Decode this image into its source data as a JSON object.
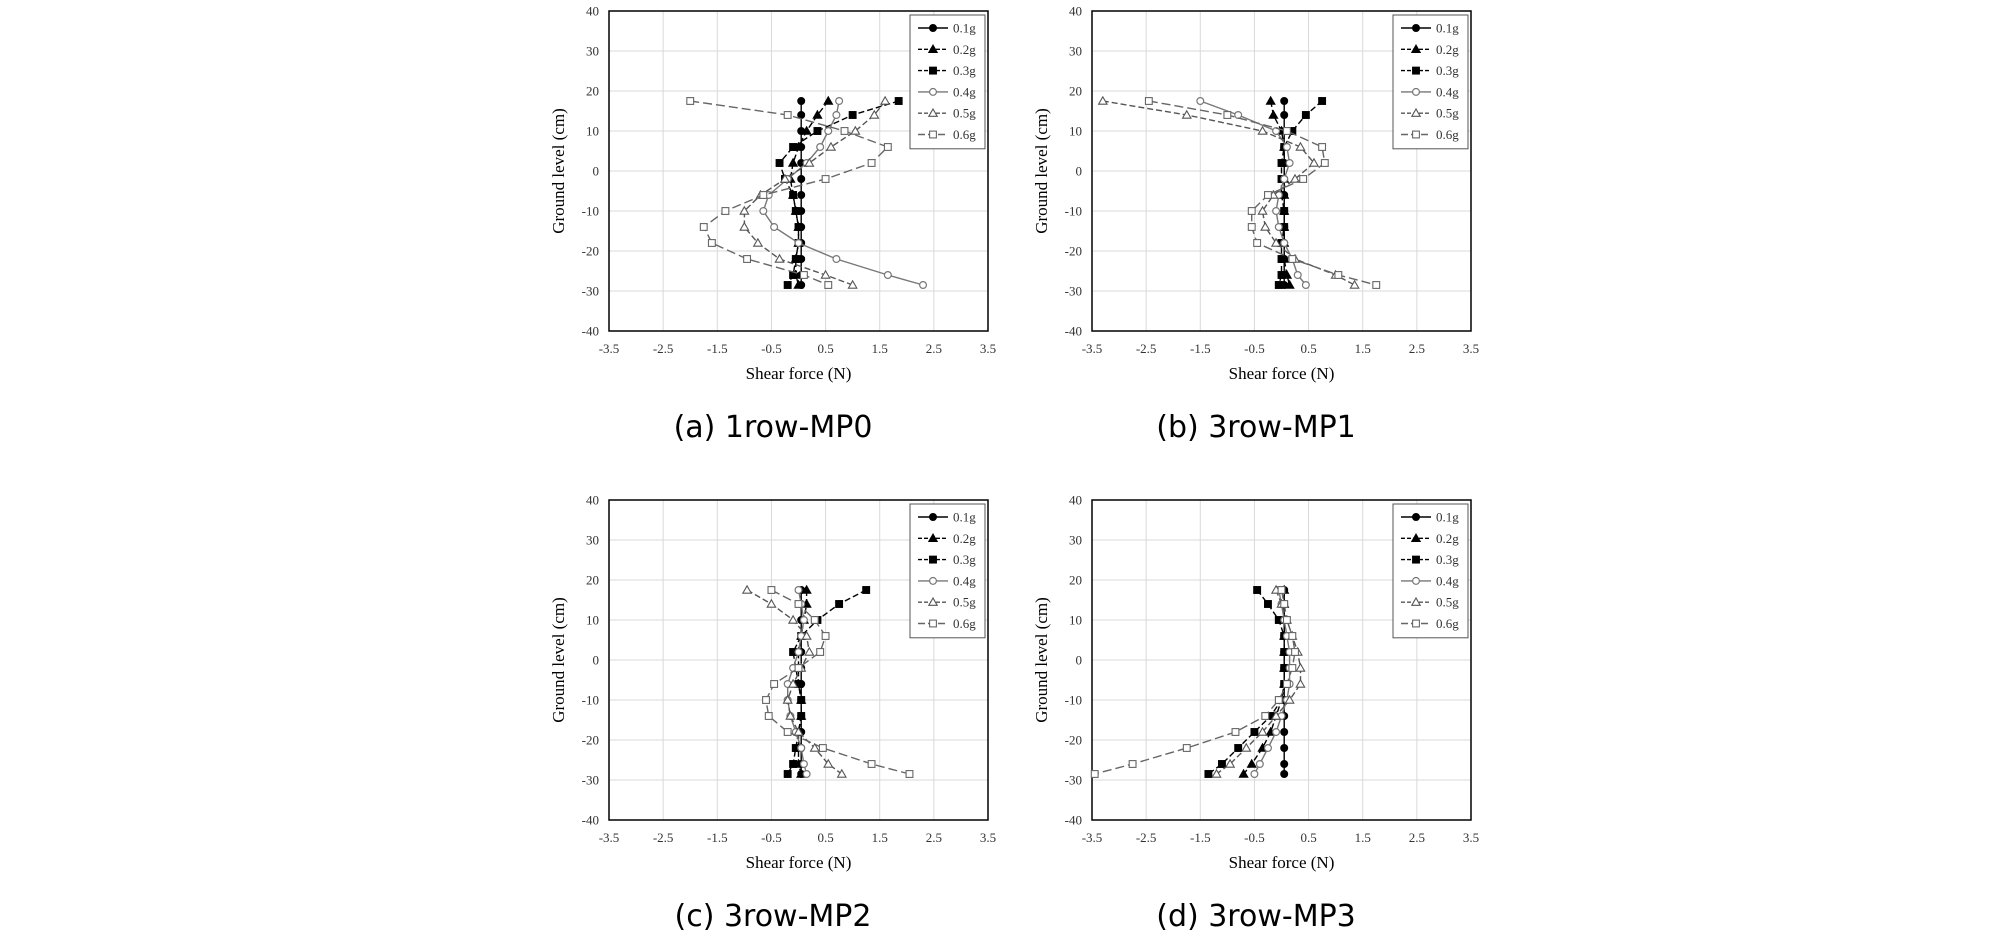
{
  "chart_data": [
    {
      "type": "line",
      "caption": "(a) 1row-MP0",
      "xlabel": "Shear force (N)",
      "ylabel": "Ground level (cm)",
      "xlim": [
        -3.5,
        3.5
      ],
      "ylim": [
        -40,
        40
      ],
      "xticks": [
        "-3.5",
        "-2.5",
        "-1.5",
        "-0.5",
        "0.5",
        "1.5",
        "2.5",
        "3.5"
      ],
      "yticks": [
        "40",
        "30",
        "20",
        "10",
        "0",
        "-10",
        "-20",
        "-30",
        "-40"
      ],
      "grid": true,
      "legend": "top-right",
      "series": [
        {
          "name": "0.1g",
          "marker": "circle-filled",
          "dash": "solid",
          "color": "#000000",
          "x": [
            0.05,
            0.05,
            0.05,
            0.05,
            0.05,
            0.05,
            0.05,
            0.05,
            0.05,
            0.05,
            0.05,
            0.05,
            0.05
          ],
          "y": [
            17.5,
            14,
            10,
            6,
            2,
            -2,
            -6,
            -10,
            -14,
            -18,
            -22,
            -26,
            -28.5
          ]
        },
        {
          "name": "0.2g",
          "marker": "triangle-filled",
          "dash": "dashed",
          "color": "#000000",
          "x": [
            0.55,
            0.35,
            0.15,
            0.0,
            -0.1,
            -0.15,
            -0.1,
            -0.05,
            0.0,
            0.0,
            -0.05,
            -0.05,
            0.0
          ],
          "y": [
            17.5,
            14,
            10,
            6,
            2,
            -2,
            -6,
            -10,
            -14,
            -18,
            -22,
            -26,
            -28.5
          ]
        },
        {
          "name": "0.3g",
          "marker": "square-filled",
          "dash": "dashed",
          "color": "#000000",
          "x": [
            1.85,
            1.0,
            0.35,
            -0.1,
            -0.35,
            -0.25,
            -0.1,
            -0.05,
            0.0,
            0.0,
            -0.05,
            -0.1,
            -0.2
          ],
          "y": [
            17.5,
            14,
            10,
            6,
            2,
            -2,
            -6,
            -10,
            -14,
            -18,
            -22,
            -26,
            -28.5
          ]
        },
        {
          "name": "0.4g",
          "marker": "circle-open",
          "dash": "solid",
          "color": "#777777",
          "x": [
            0.75,
            0.7,
            0.55,
            0.4,
            0.15,
            -0.2,
            -0.55,
            -0.65,
            -0.45,
            0.0,
            0.7,
            1.65,
            2.3
          ],
          "y": [
            17.5,
            14,
            10,
            6,
            2,
            -2,
            -6,
            -10,
            -14,
            -18,
            -22,
            -26,
            -28.5
          ]
        },
        {
          "name": "0.5g",
          "marker": "triangle-open",
          "dash": "dashed",
          "color": "#555555",
          "x": [
            1.6,
            1.4,
            1.05,
            0.6,
            0.2,
            -0.25,
            -0.7,
            -1.0,
            -1.0,
            -0.75,
            -0.35,
            0.5,
            1.0
          ],
          "y": [
            17.5,
            14,
            10,
            6,
            2,
            -2,
            -6,
            -10,
            -14,
            -18,
            -22,
            -26,
            -28.5
          ]
        },
        {
          "name": "0.6g",
          "marker": "square-open",
          "dash": "longdash",
          "color": "#666666",
          "x": [
            -2.0,
            -0.2,
            0.85,
            1.65,
            1.35,
            0.5,
            -0.65,
            -1.35,
            -1.75,
            -1.6,
            -0.95,
            0.1,
            0.55
          ],
          "y": [
            17.5,
            14,
            10,
            6,
            2,
            -2,
            -6,
            -10,
            -14,
            -18,
            -22,
            -26,
            -28.5
          ]
        }
      ]
    },
    {
      "type": "line",
      "caption": "(b) 3row-MP1",
      "xlabel": "Shear force (N)",
      "ylabel": "Ground level (cm)",
      "xlim": [
        -3.5,
        3.5
      ],
      "ylim": [
        -40,
        40
      ],
      "xticks": [
        "-3.5",
        "-2.5",
        "-1.5",
        "-0.5",
        "0.5",
        "1.5",
        "2.5",
        "3.5"
      ],
      "yticks": [
        "40",
        "30",
        "20",
        "10",
        "0",
        "-10",
        "-20",
        "-30",
        "-40"
      ],
      "grid": true,
      "legend": "top-right",
      "series": [
        {
          "name": "0.1g",
          "marker": "circle-filled",
          "dash": "solid",
          "color": "#000000",
          "x": [
            0.05,
            0.05,
            0.05,
            0.05,
            0.05,
            0.05,
            0.05,
            0.05,
            0.05,
            0.05,
            0.05,
            0.05,
            0.05
          ],
          "y": [
            17.5,
            14,
            10,
            6,
            2,
            -2,
            -6,
            -10,
            -14,
            -18,
            -22,
            -26,
            -28.5
          ]
        },
        {
          "name": "0.2g",
          "marker": "triangle-filled",
          "dash": "dashed",
          "color": "#000000",
          "x": [
            -0.2,
            -0.15,
            0.0,
            0.05,
            0.05,
            0.05,
            0.05,
            0.05,
            0.05,
            0.05,
            0.05,
            0.1,
            0.15
          ],
          "y": [
            17.5,
            14,
            10,
            6,
            2,
            -2,
            -6,
            -10,
            -14,
            -18,
            -22,
            -26,
            -28.5
          ]
        },
        {
          "name": "0.3g",
          "marker": "square-filled",
          "dash": "dashed",
          "color": "#000000",
          "x": [
            0.75,
            0.45,
            0.2,
            0.05,
            0.0,
            0.0,
            0.0,
            0.05,
            0.05,
            0.0,
            0.0,
            0.0,
            -0.05
          ],
          "y": [
            17.5,
            14,
            10,
            6,
            2,
            -2,
            -6,
            -10,
            -14,
            -18,
            -22,
            -26,
            -28.5
          ]
        },
        {
          "name": "0.4g",
          "marker": "circle-open",
          "dash": "solid",
          "color": "#777777",
          "x": [
            -1.5,
            -0.8,
            -0.1,
            0.1,
            0.15,
            0.05,
            -0.05,
            -0.1,
            -0.05,
            0.05,
            0.2,
            0.3,
            0.45
          ],
          "y": [
            17.5,
            14,
            10,
            6,
            2,
            -2,
            -6,
            -10,
            -14,
            -18,
            -22,
            -26,
            -28.5
          ]
        },
        {
          "name": "0.5g",
          "marker": "triangle-open",
          "dash": "dashed",
          "color": "#555555",
          "x": [
            -3.3,
            -1.75,
            -0.35,
            0.35,
            0.6,
            0.25,
            -0.15,
            -0.35,
            -0.3,
            -0.1,
            0.25,
            1.0,
            1.35
          ],
          "y": [
            17.5,
            14,
            10,
            6,
            2,
            -2,
            -6,
            -10,
            -14,
            -18,
            -22,
            -26,
            -28.5
          ]
        },
        {
          "name": "0.6g",
          "marker": "square-open",
          "dash": "longdash",
          "color": "#666666",
          "x": [
            -2.45,
            -1.0,
            0.1,
            0.75,
            0.8,
            0.4,
            -0.25,
            -0.55,
            -0.55,
            -0.45,
            0.2,
            1.05,
            1.75
          ],
          "y": [
            17.5,
            14,
            10,
            6,
            2,
            -2,
            -6,
            -10,
            -14,
            -18,
            -22,
            -26,
            -28.5
          ]
        }
      ]
    },
    {
      "type": "line",
      "caption": "(c) 3row-MP2",
      "xlabel": "Shear force (N)",
      "ylabel": "Ground level (cm)",
      "xlim": [
        -3.5,
        3.5
      ],
      "ylim": [
        -40,
        40
      ],
      "xticks": [
        "-3.5",
        "-2.5",
        "-1.5",
        "-0.5",
        "0.5",
        "1.5",
        "2.5",
        "3.5"
      ],
      "yticks": [
        "40",
        "30",
        "20",
        "10",
        "0",
        "-10",
        "-20",
        "-30",
        "-40"
      ],
      "grid": true,
      "legend": "top-right",
      "series": [
        {
          "name": "0.1g",
          "marker": "circle-filled",
          "dash": "solid",
          "color": "#000000",
          "x": [
            0.05,
            0.05,
            0.05,
            0.05,
            0.05,
            0.05,
            0.05,
            0.05,
            0.05,
            0.05,
            0.05,
            0.05,
            0.05
          ],
          "y": [
            17.5,
            14,
            10,
            6,
            2,
            -2,
            -6,
            -10,
            -14,
            -18,
            -22,
            -26,
            -28.5
          ]
        },
        {
          "name": "0.2g",
          "marker": "triangle-filled",
          "dash": "dashed",
          "color": "#000000",
          "x": [
            0.15,
            0.15,
            0.1,
            0.05,
            0.0,
            0.0,
            0.0,
            0.05,
            0.05,
            0.0,
            0.0,
            0.0,
            0.05
          ],
          "y": [
            17.5,
            14,
            10,
            6,
            2,
            -2,
            -6,
            -10,
            -14,
            -18,
            -22,
            -26,
            -28.5
          ]
        },
        {
          "name": "0.3g",
          "marker": "square-filled",
          "dash": "dashed",
          "color": "#000000",
          "x": [
            1.25,
            0.75,
            0.35,
            0.05,
            -0.1,
            -0.05,
            0.0,
            0.05,
            0.05,
            0.0,
            -0.05,
            -0.1,
            -0.2
          ],
          "y": [
            17.5,
            14,
            10,
            6,
            2,
            -2,
            -6,
            -10,
            -14,
            -18,
            -22,
            -26,
            -28.5
          ]
        },
        {
          "name": "0.4g",
          "marker": "circle-open",
          "dash": "solid",
          "color": "#777777",
          "x": [
            0.0,
            0.05,
            0.1,
            0.05,
            0.0,
            -0.1,
            -0.2,
            -0.2,
            -0.15,
            -0.05,
            0.05,
            0.1,
            0.15
          ],
          "y": [
            17.5,
            14,
            10,
            6,
            2,
            -2,
            -6,
            -10,
            -14,
            -18,
            -22,
            -26,
            -28.5
          ]
        },
        {
          "name": "0.5g",
          "marker": "triangle-open",
          "dash": "dashed",
          "color": "#555555",
          "x": [
            -0.95,
            -0.5,
            -0.1,
            0.15,
            0.2,
            0.05,
            -0.1,
            -0.2,
            -0.15,
            0.0,
            0.3,
            0.55,
            0.8
          ],
          "y": [
            17.5,
            14,
            10,
            6,
            2,
            -2,
            -6,
            -10,
            -14,
            -18,
            -22,
            -26,
            -28.5
          ]
        },
        {
          "name": "0.6g",
          "marker": "square-open",
          "dash": "longdash",
          "color": "#666666",
          "x": [
            -0.5,
            0.0,
            0.3,
            0.5,
            0.4,
            0.0,
            -0.45,
            -0.6,
            -0.55,
            -0.2,
            0.45,
            1.35,
            2.05
          ],
          "y": [
            17.5,
            14,
            10,
            6,
            2,
            -2,
            -6,
            -10,
            -14,
            -18,
            -22,
            -26,
            -28.5
          ]
        }
      ]
    },
    {
      "type": "line",
      "caption": "(d) 3row-MP3",
      "xlabel": "Shear force (N)",
      "ylabel": "Ground level (cm)",
      "xlim": [
        -3.5,
        3.5
      ],
      "ylim": [
        -40,
        40
      ],
      "xticks": [
        "-3.5",
        "-2.5",
        "-1.5",
        "-0.5",
        "0.5",
        "1.5",
        "2.5",
        "3.5"
      ],
      "yticks": [
        "40",
        "30",
        "20",
        "10",
        "0",
        "-10",
        "-20",
        "-30",
        "-40"
      ],
      "grid": true,
      "legend": "top-right",
      "series": [
        {
          "name": "0.1g",
          "marker": "circle-filled",
          "dash": "solid",
          "color": "#000000",
          "x": [
            0.05,
            0.05,
            0.05,
            0.05,
            0.05,
            0.05,
            0.05,
            0.05,
            0.05,
            0.05,
            0.05,
            0.05,
            0.05
          ],
          "y": [
            17.5,
            14,
            10,
            6,
            2,
            -2,
            -6,
            -10,
            -14,
            -18,
            -22,
            -26,
            -28.5
          ]
        },
        {
          "name": "0.2g",
          "marker": "triangle-filled",
          "dash": "dashed",
          "color": "#000000",
          "x": [
            0.05,
            0.05,
            0.05,
            0.05,
            0.05,
            0.05,
            0.05,
            0.0,
            -0.1,
            -0.2,
            -0.35,
            -0.55,
            -0.7
          ],
          "y": [
            17.5,
            14,
            10,
            6,
            2,
            -2,
            -6,
            -10,
            -14,
            -18,
            -22,
            -26,
            -28.5
          ]
        },
        {
          "name": "0.3g",
          "marker": "square-filled",
          "dash": "dashed",
          "color": "#000000",
          "x": [
            -0.45,
            -0.25,
            -0.05,
            0.05,
            0.05,
            0.05,
            0.05,
            0.0,
            -0.2,
            -0.5,
            -0.8,
            -1.1,
            -1.35
          ],
          "y": [
            17.5,
            14,
            10,
            6,
            2,
            -2,
            -6,
            -10,
            -14,
            -18,
            -22,
            -26,
            -28.5
          ]
        },
        {
          "name": "0.4g",
          "marker": "circle-open",
          "dash": "solid",
          "color": "#777777",
          "x": [
            -0.05,
            0.0,
            0.05,
            0.1,
            0.15,
            0.15,
            0.15,
            0.1,
            0.0,
            -0.1,
            -0.25,
            -0.4,
            -0.5
          ],
          "y": [
            17.5,
            14,
            10,
            6,
            2,
            -2,
            -6,
            -10,
            -14,
            -18,
            -22,
            -26,
            -28.5
          ]
        },
        {
          "name": "0.5g",
          "marker": "triangle-open",
          "dash": "dashed",
          "color": "#555555",
          "x": [
            -0.1,
            0.0,
            0.1,
            0.2,
            0.3,
            0.35,
            0.35,
            0.15,
            -0.1,
            -0.35,
            -0.65,
            -0.95,
            -1.2
          ],
          "y": [
            17.5,
            14,
            10,
            6,
            2,
            -2,
            -6,
            -10,
            -14,
            -18,
            -22,
            -26,
            -28.5
          ]
        },
        {
          "name": "0.6g",
          "marker": "square-open",
          "dash": "longdash",
          "color": "#666666",
          "x": [
            0.0,
            0.05,
            0.1,
            0.2,
            0.25,
            0.2,
            0.1,
            -0.05,
            -0.3,
            -0.85,
            -1.75,
            -2.75,
            -3.45
          ],
          "y": [
            17.5,
            14,
            10,
            6,
            2,
            -2,
            -6,
            -10,
            -14,
            -18,
            -22,
            -26,
            -28.5
          ]
        }
      ]
    }
  ]
}
